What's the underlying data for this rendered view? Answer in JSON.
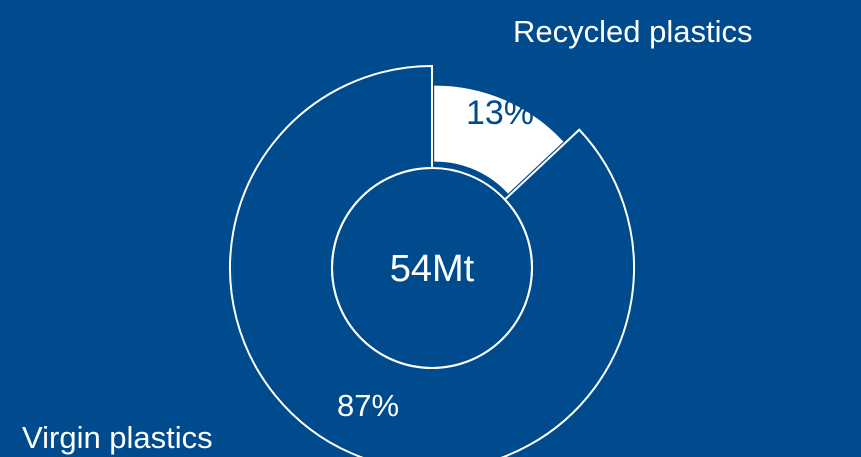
{
  "colors": {
    "background": "#004b8d",
    "highlight": "#ffffff",
    "outline": "#ffffff"
  },
  "chart_data": {
    "type": "pie",
    "subtype": "donut",
    "center_label": "54Mt",
    "slices": [
      {
        "name": "Recycled plastics",
        "value": 13,
        "label": "13%",
        "fill": "#ffffff"
      },
      {
        "name": "Virgin plastics",
        "value": 87,
        "label": "87%",
        "fill": "none"
      }
    ],
    "legend": "none"
  }
}
